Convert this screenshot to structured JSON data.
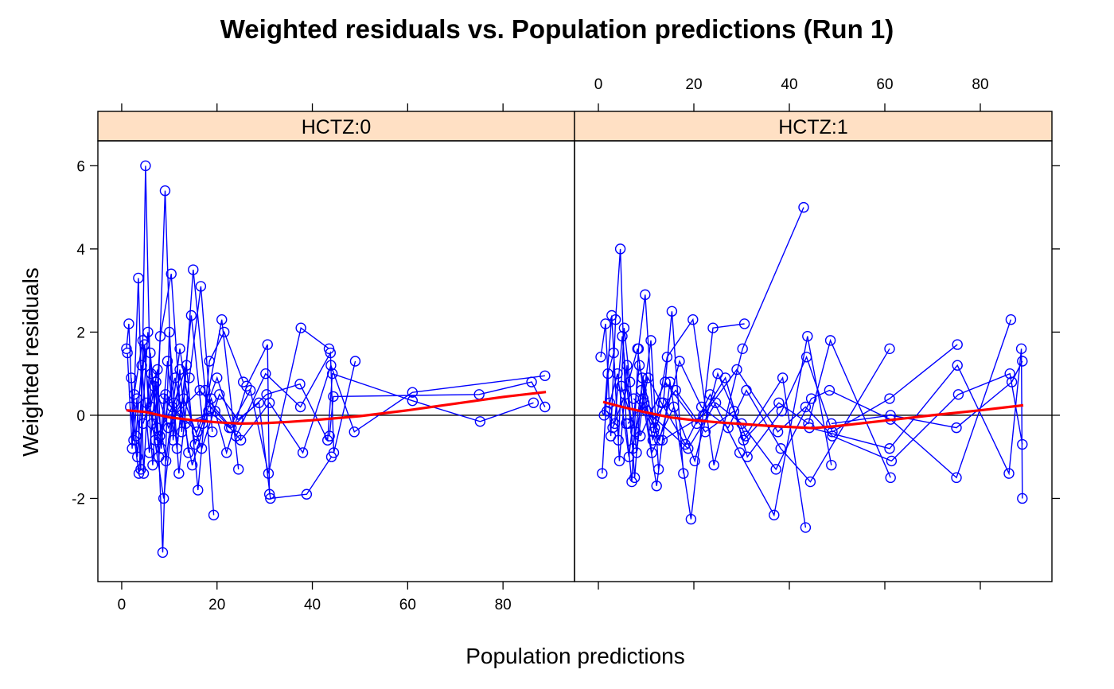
{
  "chart_data": {
    "type": "scatter",
    "title": "Weighted residuals vs. Population predictions (Run 1)",
    "xlabel": "Population predictions",
    "ylabel": "Weighted residuals",
    "xlim": [
      -5,
      95
    ],
    "ylim": [
      -4,
      6.6
    ],
    "x_ticks": [
      "0",
      "20",
      "40",
      "60",
      "80"
    ],
    "y_ticks": [
      "-2",
      "0",
      "2",
      "4",
      "6"
    ],
    "reference_line_y": 0,
    "colors": {
      "points": "#0000ff",
      "smooth": "#ff0000",
      "strip": "#ffe0c4",
      "reference": "#000000"
    },
    "panels": [
      {
        "strip": "HCTZ:0",
        "series": [
          {
            "x": [
              1.0,
              1.5,
              2.5,
              3.2,
              4.0,
              5.0,
              6.1,
              7.5,
              8.3,
              9.2
            ],
            "y": [
              1.6,
              2.2,
              -0.6,
              0.4,
              -1.3,
              6.0,
              0.2,
              1.1,
              -0.8,
              0.5
            ]
          },
          {
            "x": [
              1.2,
              2.2,
              3.5,
              4.6,
              6.0,
              7.4,
              9.1,
              10.8,
              12.2,
              14.0
            ],
            "y": [
              1.5,
              -0.8,
              3.3,
              -1.4,
              1.5,
              -0.3,
              5.4,
              -0.6,
              1.1,
              -0.9
            ]
          },
          {
            "x": [
              2.0,
              3.3,
              4.8,
              6.5,
              8.1,
              10.4,
              12.6,
              15.0,
              17.5,
              19.3
            ],
            "y": [
              0.9,
              -1.0,
              1.7,
              -1.2,
              1.9,
              3.4,
              -0.4,
              3.5,
              0.6,
              -2.4
            ]
          },
          {
            "x": [
              3.0,
              4.2,
              5.8,
              7.2,
              8.6,
              10.0,
              12.0,
              14.2,
              16.6,
              19.0
            ],
            "y": [
              -0.5,
              1.2,
              -0.9,
              0.8,
              -3.3,
              2.0,
              -1.4,
              0.9,
              3.1,
              -0.4
            ]
          },
          {
            "x": [
              1.8,
              3.6,
              5.5,
              7.8,
              9.6,
              11.6,
              14.6,
              17.0,
              21.0,
              24.5
            ],
            "y": [
              0.2,
              -1.4,
              2.0,
              -1.0,
              1.3,
              -0.8,
              2.4,
              -0.2,
              2.3,
              -1.3
            ]
          },
          {
            "x": [
              2.6,
              4.4,
              6.4,
              8.8,
              11.0,
              13.6,
              16.0,
              18.4,
              21.5,
              25.5
            ],
            "y": [
              0.5,
              1.8,
              -0.2,
              -2.0,
              0.3,
              1.2,
              -1.8,
              1.3,
              2.0,
              0.8
            ]
          },
          {
            "x": [
              4.5,
              6.8,
              9.3,
              12.2,
              15.4,
              18.8,
              22.0,
              26.2,
              30.6,
              31.0
            ],
            "y": [
              -0.2,
              0.7,
              -1.1,
              1.6,
              -0.7,
              0.4,
              -0.9,
              0.7,
              1.7,
              -1.9
            ]
          },
          {
            "x": [
              5.2,
              8.0,
              11.2,
              14.8,
              18.2,
              22.6,
              27.0,
              30.8,
              37.6,
              43.5
            ],
            "y": [
              0.3,
              -0.5,
              0.9,
              -1.2,
              0.1,
              -0.3,
              0.6,
              -1.4,
              2.1,
              1.6
            ]
          },
          {
            "x": [
              6.2,
              9.8,
              13.0,
              16.8,
              20.5,
              24.4,
              28.8,
              31.2,
              38.8,
              44.0
            ],
            "y": [
              1.0,
              -0.3,
              0.4,
              -0.8,
              0.5,
              -0.1,
              0.3,
              -2.0,
              -1.9,
              -1.0
            ]
          },
          {
            "x": [
              7.0,
              10.6,
              15.8,
              20.0,
              24.0,
              30.2,
              37.5,
              43.8,
              44.5,
              49.0
            ],
            "y": [
              -0.6,
              0.2,
              -0.4,
              0.9,
              -0.5,
              1.0,
              0.2,
              1.5,
              -0.9,
              1.3
            ]
          },
          {
            "x": [
              8.8,
              13.4,
              19.6,
              25.0,
              31.0,
              38.0,
              43.9,
              48.8,
              61.0,
              88.8
            ],
            "y": [
              0.4,
              -0.2,
              0.1,
              -0.6,
              0.3,
              -0.9,
              1.2,
              -0.4,
              0.55,
              0.95
            ]
          },
          {
            "x": [
              10.2,
              16.4,
              23.0,
              30.4,
              37.4,
              43.2,
              44.2,
              61.0,
              75.2,
              86.4
            ],
            "y": [
              -0.1,
              0.6,
              -0.3,
              0.5,
              0.75,
              -0.6,
              1.0,
              0.35,
              -0.15,
              0.3
            ]
          },
          {
            "x": [
              43.6,
              44.4,
              75.0,
              86.0,
              88.8
            ],
            "y": [
              -0.5,
              0.45,
              0.5,
              0.8,
              0.2
            ]
          }
        ],
        "smooth": {
          "x": [
            1,
            5,
            10,
            15,
            20,
            25,
            30,
            35,
            40,
            45,
            50,
            60,
            70,
            80,
            89
          ],
          "y": [
            0.12,
            0.08,
            -0.05,
            -0.12,
            -0.17,
            -0.2,
            -0.19,
            -0.16,
            -0.12,
            -0.07,
            -0.02,
            0.12,
            0.28,
            0.44,
            0.56
          ]
        }
      },
      {
        "strip": "HCTZ:1",
        "series": [
          {
            "x": [
              0.5,
              1.5,
              2.6,
              3.6,
              4.6,
              5.8,
              7.0,
              8.4,
              9.8,
              11.6
            ],
            "y": [
              1.4,
              2.2,
              -0.5,
              2.3,
              4.0,
              -0.2,
              -1.6,
              1.6,
              2.9,
              -0.4
            ]
          },
          {
            "x": [
              0.8,
              2.0,
              3.2,
              4.2,
              5.4,
              6.6,
              8.0,
              9.4,
              11.0,
              12.6
            ],
            "y": [
              -1.4,
              1.0,
              1.5,
              -0.6,
              2.1,
              0.8,
              -0.9,
              0.4,
              1.8,
              -1.3
            ]
          },
          {
            "x": [
              1.2,
              2.8,
              4.4,
              6.0,
              7.6,
              9.2,
              11.4,
              13.6,
              15.4,
              17.8
            ],
            "y": [
              0.0,
              2.4,
              -1.1,
              1.2,
              -1.5,
              0.9,
              -0.6,
              0.3,
              2.5,
              -1.4
            ]
          },
          {
            "x": [
              1.8,
              3.4,
              5.0,
              7.2,
              9.0,
              12.2,
              15.0,
              19.4,
              24.0,
              30.6
            ],
            "y": [
              0.1,
              -0.2,
              1.9,
              -0.8,
              0.6,
              -1.7,
              0.8,
              -2.5,
              2.1,
              2.2
            ]
          },
          {
            "x": [
              2.4,
              4.0,
              6.4,
              8.6,
              11.8,
              14.4,
              19.8,
              24.2,
              30.2,
              43.0
            ],
            "y": [
              0.3,
              1.0,
              -1.0,
              1.2,
              -0.3,
              1.4,
              2.3,
              -1.2,
              1.6,
              5.0
            ]
          },
          {
            "x": [
              3.0,
              5.6,
              8.2,
              11.2,
              15.8,
              20.2,
              25.0,
              30.8,
              38.6,
              43.4
            ],
            "y": [
              -0.3,
              0.5,
              1.6,
              -0.9,
              0.2,
              -1.1,
              1.0,
              -0.5,
              0.9,
              -2.7
            ]
          },
          {
            "x": [
              4.8,
              7.8,
              10.4,
              13.2,
              18.2,
              23.4,
              29.6,
              36.8,
              43.8,
              48.8
            ],
            "y": [
              0.7,
              -0.4,
              0.9,
              0.3,
              -0.7,
              0.5,
              -0.9,
              -2.4,
              1.9,
              -1.2
            ]
          },
          {
            "x": [
              6.2,
              9.6,
              12.8,
              17.0,
              21.6,
              27.2,
              31.0,
              38.2,
              44.4,
              61.0
            ],
            "y": [
              -0.2,
              0.3,
              -0.6,
              1.3,
              0.2,
              -0.3,
              0.6,
              -0.8,
              -1.6,
              1.6
            ]
          },
          {
            "x": [
              7.4,
              11.6,
              16.2,
              22.4,
              28.4,
              30.4,
              37.8,
              44.0,
              48.6,
              61.2
            ],
            "y": [
              0.4,
              -0.1,
              0.6,
              -0.4,
              0.1,
              -0.6,
              0.3,
              -0.2,
              1.8,
              -1.5
            ]
          },
          {
            "x": [
              8.8,
              14.0,
              20.6,
              26.6,
              31.2,
              38.4,
              43.6,
              49.0,
              61.0,
              75.2
            ],
            "y": [
              -0.5,
              0.8,
              -0.2,
              0.9,
              -1.0,
              0.1,
              1.4,
              -0.4,
              0.4,
              1.7
            ]
          },
          {
            "x": [
              10.2,
              18.8,
              24.6,
              30.0,
              37.2,
              44.6,
              48.4,
              61.2,
              75.0,
              86.4
            ],
            "y": [
              0.1,
              -0.8,
              0.3,
              -0.2,
              -1.3,
              0.4,
              0.6,
              -0.1,
              -1.5,
              2.3
            ]
          },
          {
            "x": [
              13.4,
              22.0,
              29.0,
              37.6,
              43.4,
              49.0,
              61.4,
              75.4,
              86.2,
              88.8
            ],
            "y": [
              -0.6,
              0.0,
              1.1,
              -0.4,
              0.2,
              -0.5,
              -1.1,
              0.5,
              1.0,
              -0.7
            ]
          },
          {
            "x": [
              44.2,
              61.0,
              75.2,
              86.0,
              88.6,
              88.8
            ],
            "y": [
              -0.3,
              -0.8,
              1.2,
              -1.4,
              1.6,
              -2.0
            ]
          },
          {
            "x": [
              48.8,
              61.2,
              75.0,
              86.6,
              88.8
            ],
            "y": [
              -0.2,
              0.0,
              -0.3,
              0.8,
              1.3
            ]
          }
        ],
        "smooth": {
          "x": [
            1,
            5,
            10,
            15,
            20,
            25,
            30,
            35,
            40,
            45,
            50,
            60,
            70,
            80,
            89
          ],
          "y": [
            0.32,
            0.2,
            0.07,
            -0.05,
            -0.12,
            -0.17,
            -0.21,
            -0.25,
            -0.28,
            -0.31,
            -0.26,
            -0.13,
            0.0,
            0.12,
            0.24
          ]
        }
      }
    ]
  }
}
